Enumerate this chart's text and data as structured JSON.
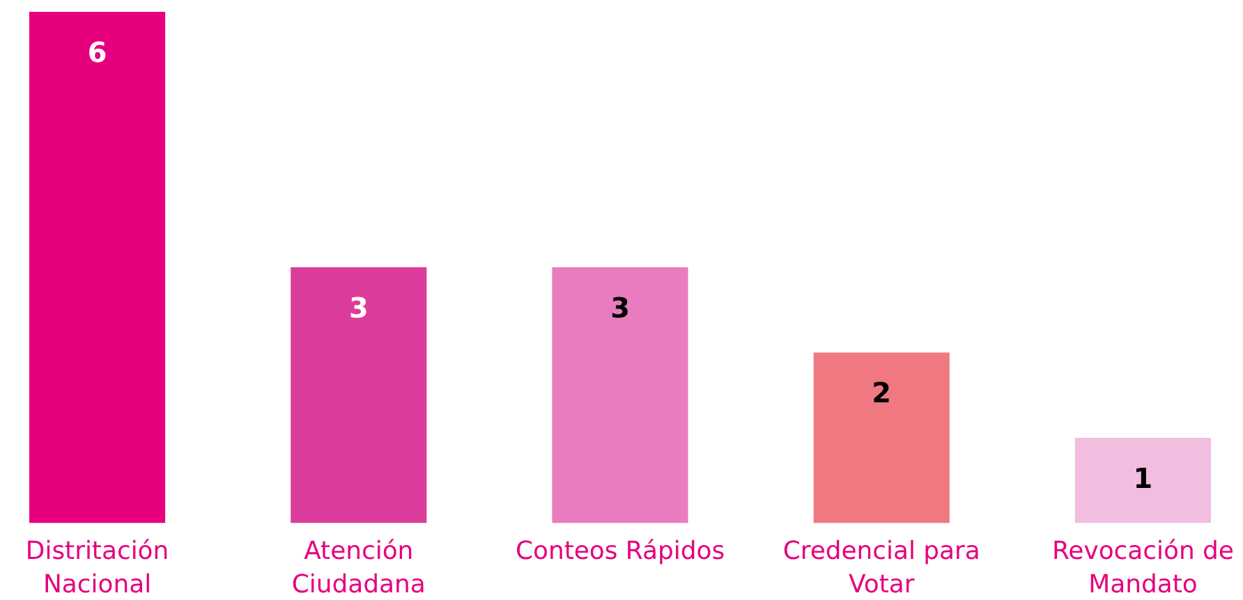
{
  "chart_data": {
    "type": "bar",
    "categories": [
      "Distritación Nacional",
      "Atención Ciudadana",
      "Conteos Rápidos",
      "Credencial para Votar",
      "Revocación de Mandato"
    ],
    "values": [
      6,
      3,
      3,
      2,
      1
    ],
    "colors": [
      "#e6007e",
      "#dc3c9c",
      "#e87cbe",
      "#f07880",
      "#f2bedf"
    ],
    "data_labels": true
  }
}
